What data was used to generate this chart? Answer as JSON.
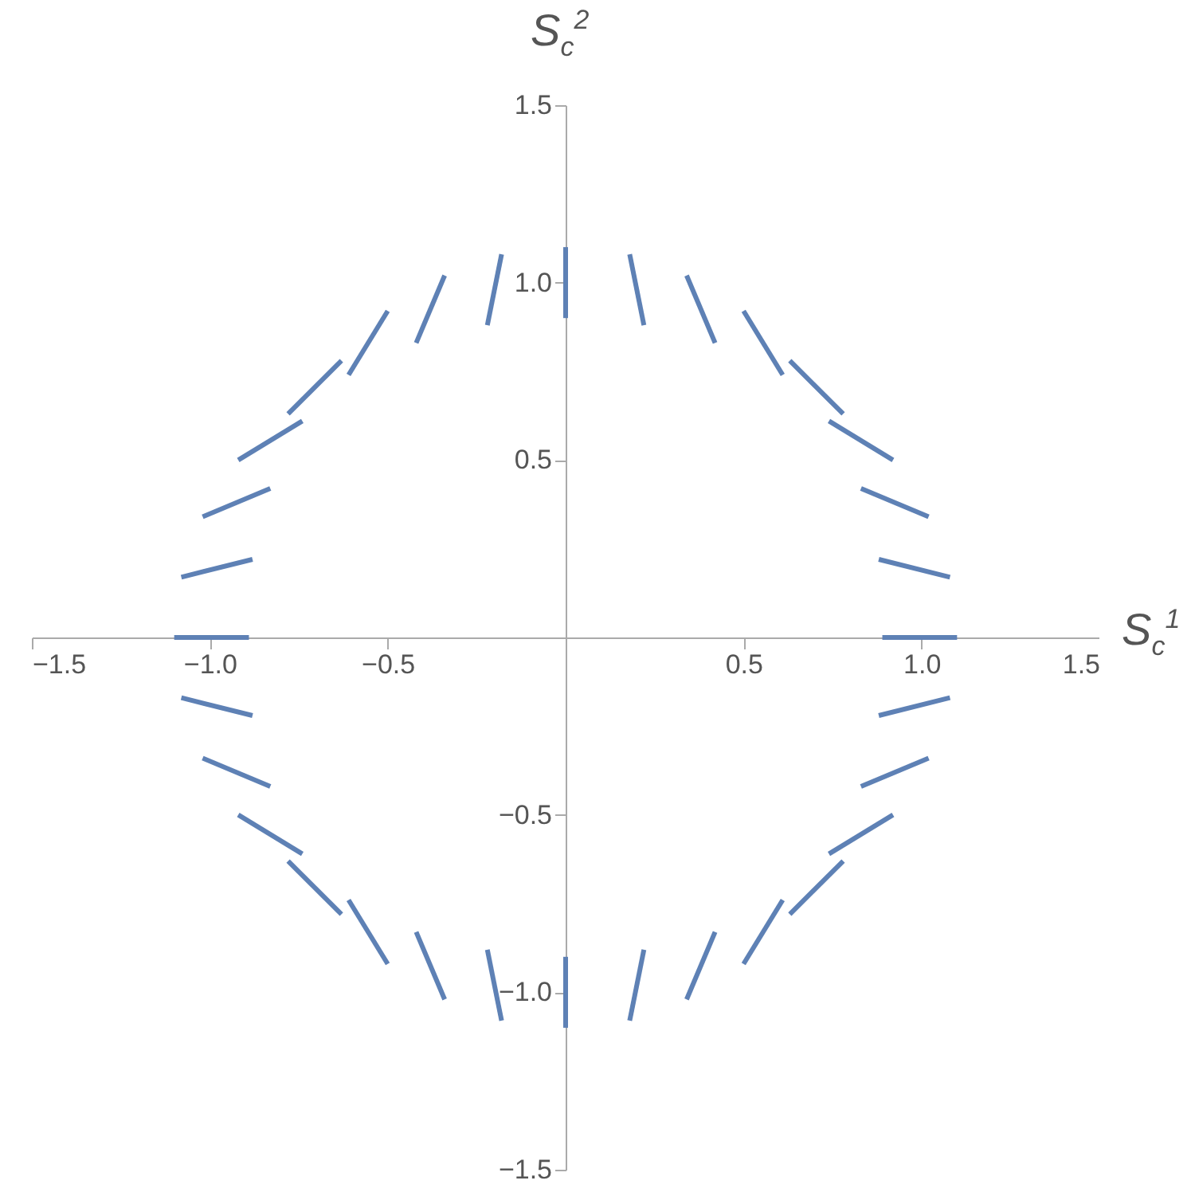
{
  "chart_data": {
    "type": "line",
    "xlabel": "S$_{c}$$^{1}$",
    "ylabel": "S$_{c}$$^{2}$",
    "xlim": [
      -1.5,
      1.5
    ],
    "ylim": [
      -1.5,
      1.5
    ],
    "xticks": [
      {
        "value": -1.5,
        "label": "−1.5"
      },
      {
        "value": -1,
        "label": "−1.0"
      },
      {
        "value": -0.5,
        "label": "−0.5"
      },
      0.5,
      {
        "value": 1,
        "label": "1.0"
      },
      1.5
    ],
    "yticks": [
      {
        "value": -1.5,
        "label": "−1.5"
      },
      {
        "value": -1,
        "label": "−1.0"
      },
      {
        "value": -0.5,
        "label": "−0.5"
      },
      0.5,
      {
        "value": 1,
        "label": "1.0"
      },
      1.5
    ],
    "grid": false,
    "marker": "none",
    "line_style": "solid",
    "series": [
      {
        "color": "#5e81b5",
        "x": [
          0.89,
          1.1
        ],
        "values": [
          0,
          0
        ]
      },
      {
        "color": "#5e81b5",
        "x": [
          0.88,
          1.08
        ],
        "values": [
          0.22,
          0.17
        ]
      },
      {
        "color": "#5e81b5",
        "x": [
          0.83,
          1.02
        ],
        "values": [
          0.42,
          0.34
        ]
      },
      {
        "color": "#5e81b5",
        "x": [
          0.74,
          0.92
        ],
        "values": [
          0.61,
          0.5
        ]
      },
      {
        "color": "#5e81b5",
        "x": [
          0.63,
          0.78
        ],
        "values": [
          0.78,
          0.63
        ]
      },
      {
        "color": "#5e81b5",
        "x": [
          0.5,
          0.61
        ],
        "values": [
          0.92,
          0.74
        ]
      },
      {
        "color": "#5e81b5",
        "x": [
          0.34,
          0.42
        ],
        "values": [
          1.02,
          0.83
        ]
      },
      {
        "color": "#5e81b5",
        "x": [
          0.18,
          0.22
        ],
        "values": [
          1.08,
          0.88
        ]
      },
      {
        "color": "#5e81b5",
        "x": [
          0,
          0
        ],
        "values": [
          0.9,
          1.1
        ]
      },
      {
        "color": "#5e81b5",
        "x": [
          -0.18,
          -0.22
        ],
        "values": [
          1.08,
          0.88
        ]
      },
      {
        "color": "#5e81b5",
        "x": [
          -0.34,
          -0.42
        ],
        "values": [
          1.02,
          0.83
        ]
      },
      {
        "color": "#5e81b5",
        "x": [
          -0.5,
          -0.61
        ],
        "values": [
          0.92,
          0.74
        ]
      },
      {
        "color": "#5e81b5",
        "x": [
          -0.63,
          -0.78
        ],
        "values": [
          0.78,
          0.63
        ]
      },
      {
        "color": "#5e81b5",
        "x": [
          -0.74,
          -0.92
        ],
        "values": [
          0.61,
          0.5
        ]
      },
      {
        "color": "#5e81b5",
        "x": [
          -0.83,
          -1.02
        ],
        "values": [
          0.42,
          0.34
        ]
      },
      {
        "color": "#5e81b5",
        "x": [
          -0.88,
          -1.08
        ],
        "values": [
          0.22,
          0.17
        ]
      },
      {
        "color": "#5e81b5",
        "x": [
          -0.89,
          -1.1
        ],
        "values": [
          0,
          0
        ]
      },
      {
        "color": "#5e81b5",
        "x": [
          -0.88,
          -1.08
        ],
        "values": [
          -0.22,
          -0.17
        ]
      },
      {
        "color": "#5e81b5",
        "x": [
          -0.83,
          -1.02
        ],
        "values": [
          -0.42,
          -0.34
        ]
      },
      {
        "color": "#5e81b5",
        "x": [
          -0.74,
          -0.92
        ],
        "values": [
          -0.61,
          -0.5
        ]
      },
      {
        "color": "#5e81b5",
        "x": [
          -0.63,
          -0.78
        ],
        "values": [
          -0.78,
          -0.63
        ]
      },
      {
        "color": "#5e81b5",
        "x": [
          -0.5,
          -0.61
        ],
        "values": [
          -0.92,
          -0.74
        ]
      },
      {
        "color": "#5e81b5",
        "x": [
          -0.34,
          -0.42
        ],
        "values": [
          -1.02,
          -0.83
        ]
      },
      {
        "color": "#5e81b5",
        "x": [
          -0.18,
          -0.22
        ],
        "values": [
          -1.08,
          -0.88
        ]
      },
      {
        "color": "#5e81b5",
        "x": [
          0,
          0
        ],
        "values": [
          -0.9,
          -1.1
        ]
      },
      {
        "color": "#5e81b5",
        "x": [
          0.18,
          0.22
        ],
        "values": [
          -1.08,
          -0.88
        ]
      },
      {
        "color": "#5e81b5",
        "x": [
          0.34,
          0.42
        ],
        "values": [
          -1.02,
          -0.83
        ]
      },
      {
        "color": "#5e81b5",
        "x": [
          0.5,
          0.61
        ],
        "values": [
          -0.92,
          -0.74
        ]
      },
      {
        "color": "#5e81b5",
        "x": [
          0.63,
          0.78
        ],
        "values": [
          -0.78,
          -0.63
        ]
      },
      {
        "color": "#5e81b5",
        "x": [
          0.74,
          0.92
        ],
        "values": [
          -0.61,
          -0.5
        ]
      },
      {
        "color": "#5e81b5",
        "x": [
          0.83,
          1.02
        ],
        "values": [
          -0.42,
          -0.34
        ]
      },
      {
        "color": "#5e81b5",
        "x": [
          0.88,
          1.08
        ],
        "values": [
          -0.22,
          -0.17
        ]
      }
    ]
  }
}
